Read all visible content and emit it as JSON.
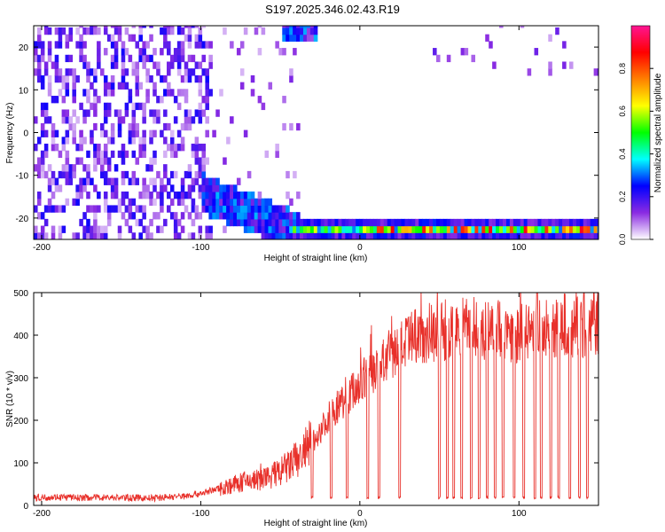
{
  "figure_title": "S197.2025.346.02.43.R19",
  "chart_data": [
    {
      "type": "heatmap",
      "title": "S197.2025.346.02.43.R19",
      "xlabel": "Height of straight line (km)",
      "ylabel": "Frequency (Hz)",
      "xlim": [
        -205,
        150
      ],
      "ylim": [
        -25,
        25
      ],
      "x_ticks": [
        -200,
        -100,
        0,
        100
      ],
      "x_tick_labels": [
        "-200",
        "-100",
        "0",
        "100"
      ],
      "y_ticks": [
        -20,
        -10,
        0,
        10,
        20
      ],
      "y_tick_labels": [
        "-20",
        "-10",
        "0",
        "10",
        "20"
      ],
      "colorbar": {
        "label": "Normalized spectral amplitude",
        "range": [
          0,
          1
        ],
        "ticks": [
          0,
          0.2,
          0.4,
          0.6,
          0.8
        ],
        "tick_labels": [
          "0.0",
          "0.2",
          "0.4",
          "0.6",
          "0.8"
        ],
        "colormap": [
          "#ffffff",
          "#8a2be2",
          "#0000ff",
          "#00ffff",
          "#00ff00",
          "#ffff00",
          "#ff8000",
          "#ff0000",
          "#ff1493"
        ]
      },
      "features": [
        {
          "region": "x -205..-100, all frequencies",
          "description": "scattered purple speckle noise, amplitude 0.05-0.25"
        },
        {
          "region": "x -100..-40, freq -15..-25",
          "description": "descending band, amplitude up to 0.3"
        },
        {
          "region": "x -40..150, freq ~-23",
          "description": "strong narrow line, amplitude 0.3-0.9"
        },
        {
          "region": "x -50..-30, freq ~23",
          "description": "bright patch, amplitude ~0.3"
        },
        {
          "region": "x 45..150, freq 10..25",
          "description": "vertical streaks, low amplitude"
        }
      ],
      "grid": false
    },
    {
      "type": "line",
      "xlabel": "Height of straight line (km)",
      "ylabel": "SNR (10 * v/v)",
      "xlim": [
        -205,
        150
      ],
      "ylim": [
        0,
        500
      ],
      "x_ticks": [
        -200,
        -100,
        0,
        100
      ],
      "x_tick_labels": [
        "-200",
        "-100",
        "0",
        "100"
      ],
      "y_ticks": [
        0,
        100,
        200,
        300,
        400,
        500
      ],
      "y_tick_labels": [
        "0",
        "100",
        "200",
        "300",
        "400",
        "500"
      ],
      "color": "#e8302a",
      "grid": false,
      "series": [
        {
          "x": [
            -205,
            -190,
            -175,
            -160,
            -145,
            -130,
            -120,
            -110,
            -100,
            -90,
            -80,
            -70,
            -60,
            -50,
            -40,
            -30,
            -20,
            -10,
            0,
            10,
            20,
            30,
            40,
            50,
            60,
            70,
            80,
            90,
            100,
            110,
            120,
            130,
            140,
            150
          ],
          "y": [
            18,
            20,
            18,
            19,
            18,
            17,
            20,
            22,
            28,
            38,
            48,
            58,
            62,
            78,
            105,
            145,
            205,
            250,
            285,
            320,
            355,
            380,
            405,
            410,
            415,
            418,
            410,
            415,
            405,
            420,
            410,
            425,
            420,
            428
          ]
        }
      ],
      "dropouts_x": [
        -30,
        -18,
        -8,
        5,
        12,
        25,
        50,
        55,
        59,
        64,
        70,
        75,
        80,
        85,
        90,
        97,
        103,
        110,
        114,
        120,
        125,
        132,
        138,
        143
      ],
      "dropout_value": 15
    }
  ]
}
